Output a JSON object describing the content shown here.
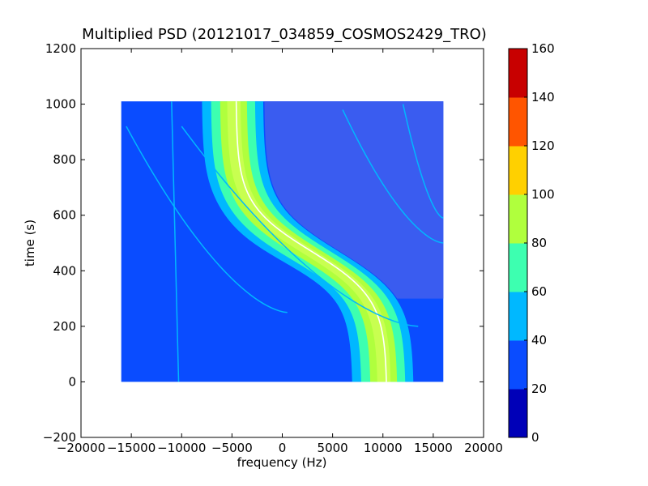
{
  "chart_data": {
    "type": "heatmap",
    "title": "Multiplied PSD (20121017_034859_COSMOS2429_TRO)",
    "xlabel": "frequency (Hz)",
    "ylabel": "time (s)",
    "xlim": [
      -20000,
      20000
    ],
    "ylim": [
      -200,
      1200
    ],
    "x_ticks": [
      -20000,
      -15000,
      -10000,
      -5000,
      0,
      5000,
      10000,
      15000,
      20000
    ],
    "y_ticks": [
      -200,
      0,
      200,
      400,
      600,
      800,
      1000,
      1200
    ],
    "data_extent": {
      "x": [
        -16000,
        16000
      ],
      "y": [
        0,
        1010
      ]
    },
    "colorbar": {
      "levels": [
        0,
        20,
        40,
        60,
        80,
        100,
        120,
        140,
        160
      ],
      "colors": [
        "#0000b8",
        "#0a4cff",
        "#00b8ff",
        "#3dffb0",
        "#b0ff3d",
        "#ffd000",
        "#ff5500",
        "#c80000"
      ]
    },
    "features": {
      "main_band": {
        "description_values": "curved high-intensity Doppler band",
        "center_top_freq": -4800,
        "center_bottom_freq": 10200,
        "turn_time": 470,
        "half_width": [
          3200,
          2300,
          1400,
          700
        ]
      },
      "traces": [
        {
          "start": [
            -15500,
            920
          ],
          "end": [
            500,
            250
          ]
        },
        {
          "start": [
            -10000,
            920
          ],
          "end": [
            13500,
            200
          ]
        },
        {
          "start": [
            6000,
            980
          ],
          "end": [
            16000,
            500
          ]
        },
        {
          "start": [
            12000,
            1000
          ],
          "end": [
            16000,
            590
          ]
        }
      ],
      "vertical_line": {
        "top": [
          -11000,
          1010
        ],
        "bottom": [
          -10300,
          0
        ]
      }
    }
  }
}
